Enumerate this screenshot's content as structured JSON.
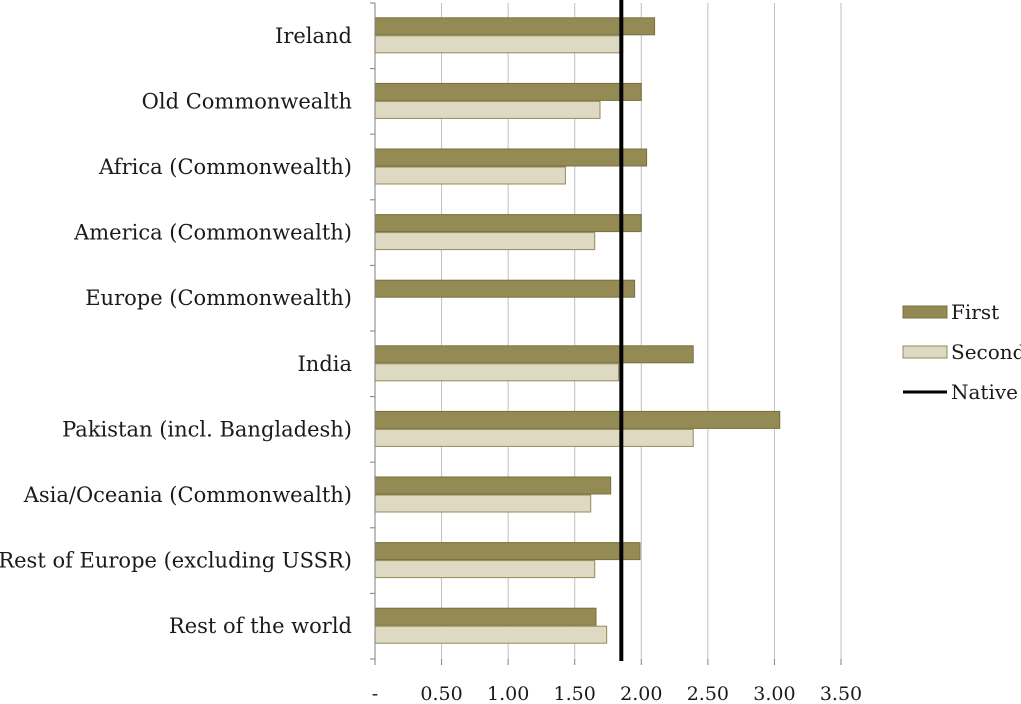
{
  "chart_data": {
    "type": "bar",
    "orientation": "horizontal",
    "categories": [
      "Ireland",
      "Old Commonwealth",
      "Africa (Commonwealth)",
      "America (Commonwealth)",
      "Europe (Commonwealth)",
      "India",
      "Pakistan (incl. Bangladesh)",
      "Asia/Oceania (Commonwealth)",
      "Rest of Europe (excluding USSR)",
      "Rest of the world"
    ],
    "series": [
      {
        "name": "First",
        "color": "#948a54",
        "values": [
          2.1,
          2.0,
          2.04,
          2.0,
          1.95,
          2.39,
          3.04,
          1.77,
          1.99,
          1.66
        ]
      },
      {
        "name": "Second",
        "color": "#ddd9c3",
        "values": [
          1.86,
          1.69,
          1.43,
          1.65,
          null,
          1.83,
          2.39,
          1.62,
          1.65,
          1.74
        ]
      }
    ],
    "reference_line": {
      "name": "Native",
      "value": 1.85,
      "color": "#000000"
    },
    "xlim": [
      0,
      3.5
    ],
    "xticks": [
      0,
      0.5,
      1.0,
      1.5,
      2.0,
      2.5,
      3.0,
      3.5
    ],
    "xtick_labels": [
      "-",
      "0.50",
      "1.00",
      "1.50",
      "2.00",
      "2.50",
      "3.00",
      "3.50"
    ],
    "title": "",
    "xlabel": "",
    "ylabel": "",
    "grid": "vertical",
    "legend_position": "right"
  }
}
